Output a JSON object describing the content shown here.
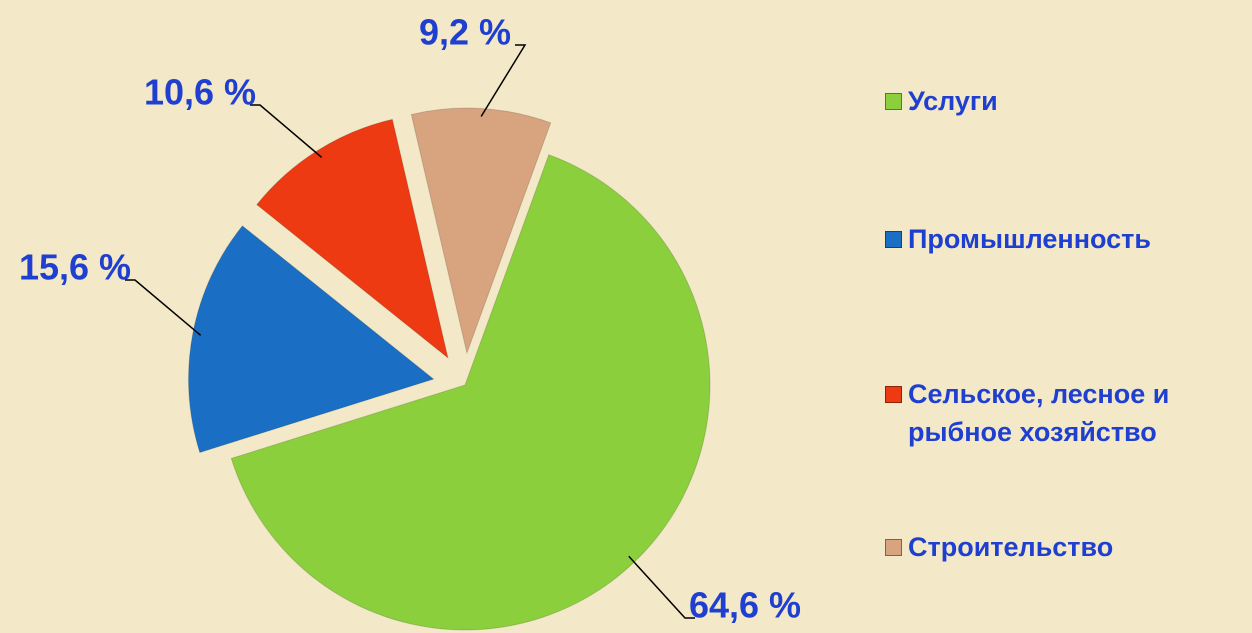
{
  "chart_data": {
    "type": "pie",
    "categories": [
      "Услуги",
      "Промышленность",
      "Сельское, лесное и рыбное хозяйство",
      "Строительство"
    ],
    "values": [
      64.6,
      15.6,
      10.6,
      9.2
    ],
    "value_labels": [
      "64,6 %",
      "15,6 %",
      "10,6 %",
      "9,2 %"
    ],
    "colors": [
      "#8ccf3c",
      "#1a6fc4",
      "#ee3a12",
      "#d8a47f"
    ],
    "legend": "right"
  }
}
